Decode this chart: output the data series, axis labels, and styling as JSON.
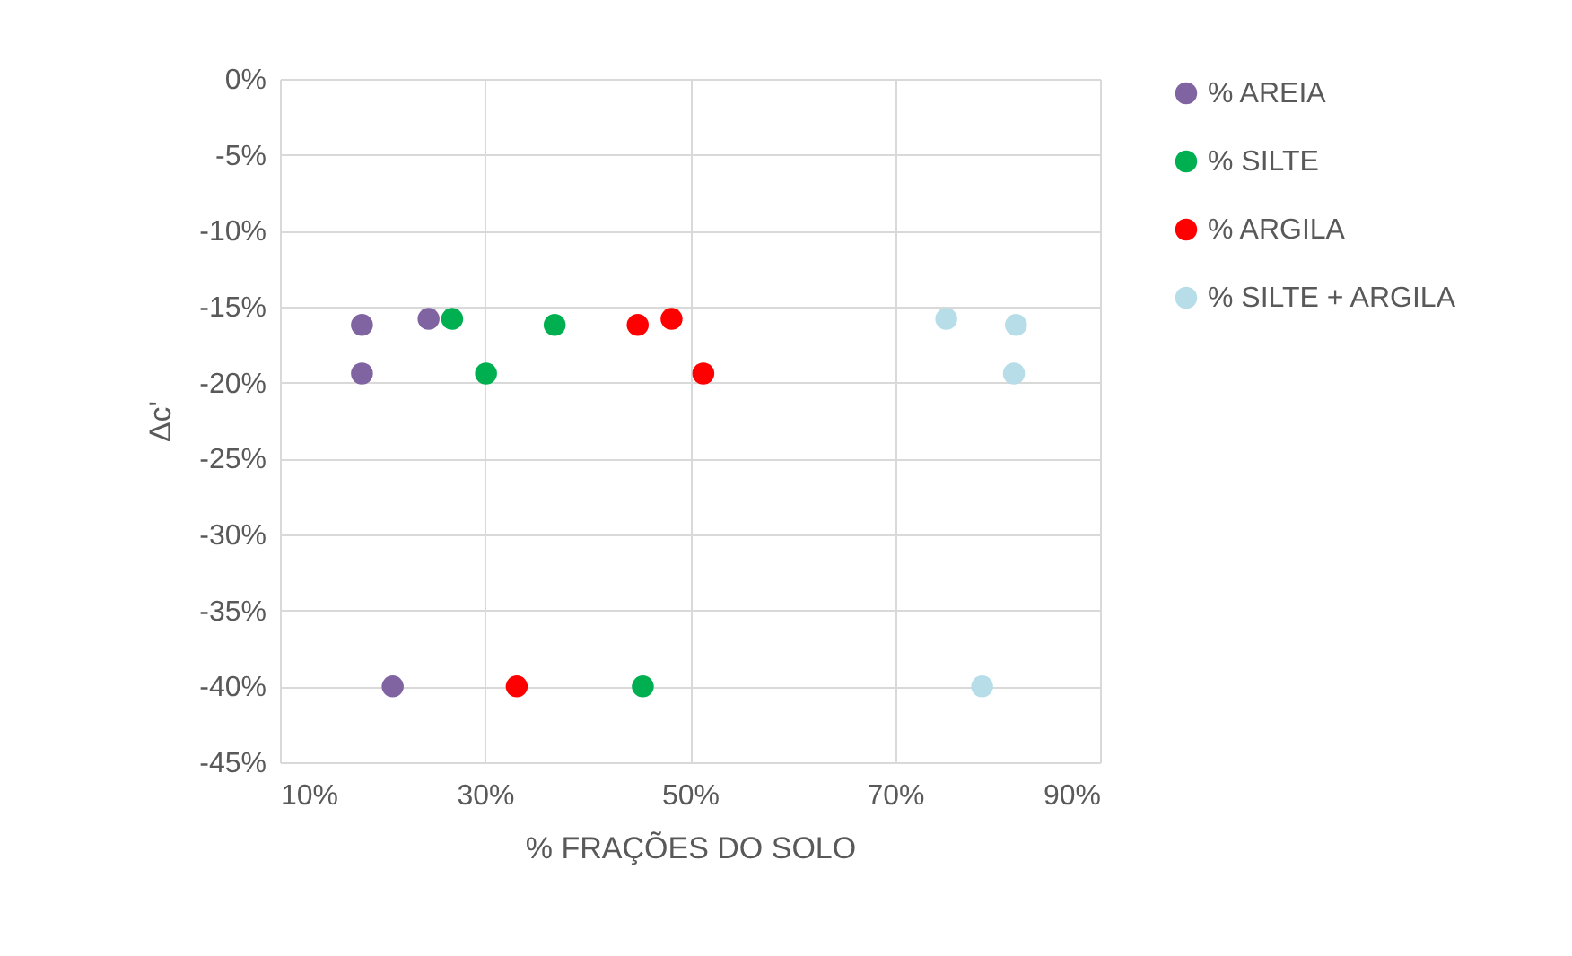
{
  "chart_data": {
    "type": "scatter",
    "xlabel": "% FRAÇÕES DO SOLO",
    "ylabel": "Δc'",
    "xlim": [
      10,
      90
    ],
    "xticks": [
      {
        "value": 10,
        "label": "10%"
      },
      {
        "value": 30,
        "label": "30%"
      },
      {
        "value": 50,
        "label": "50%"
      },
      {
        "value": 70,
        "label": "70%"
      },
      {
        "value": 90,
        "label": "90%"
      }
    ],
    "ylim": [
      -45,
      0
    ],
    "yticks": [
      {
        "value": 0,
        "label": "0%"
      },
      {
        "value": -5,
        "label": "-5%"
      },
      {
        "value": -10,
        "label": "-10%"
      },
      {
        "value": -15,
        "label": "-15%"
      },
      {
        "value": -20,
        "label": "-20%"
      },
      {
        "value": -25,
        "label": "-25%"
      },
      {
        "value": -30,
        "label": "-30%"
      },
      {
        "value": -35,
        "label": "-35%"
      },
      {
        "value": -40,
        "label": "-40%"
      },
      {
        "value": -45,
        "label": "-45%"
      }
    ],
    "grid": true,
    "legend": "right",
    "marker": "circle",
    "series": [
      {
        "name": "% AREIA",
        "color": "#8064a2",
        "x": [
          18,
          18,
          24.5,
          21
        ],
        "values": [
          -16.2,
          -19.4,
          -15.8,
          -40
        ]
      },
      {
        "name": "% SILTE",
        "color": "#00b050",
        "x": [
          26.8,
          36.8,
          30.1,
          45.4
        ],
        "values": [
          -15.8,
          -16.2,
          -19.4,
          -40
        ]
      },
      {
        "name": "% ARGILA",
        "color": "#ff0000",
        "x": [
          44.9,
          48.2,
          51.3,
          33.1
        ],
        "values": [
          -16.2,
          -15.8,
          -19.4,
          -40
        ]
      },
      {
        "name": "% SILTE + ARGILA",
        "color": "#b7dee8",
        "x": [
          75,
          81.8,
          81.6,
          78.5
        ],
        "values": [
          -15.8,
          -16.2,
          -19.4,
          -40
        ]
      }
    ]
  }
}
